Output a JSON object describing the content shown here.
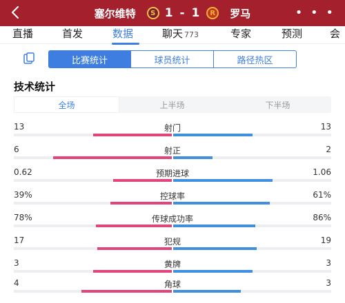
{
  "header": {
    "home_team": "塞尔维特",
    "home_crest": "S",
    "score": "1 - 1",
    "away_team": "罗马",
    "away_crest": "R",
    "more": "• • •"
  },
  "tabs": [
    {
      "label": "直播"
    },
    {
      "label": "首发"
    },
    {
      "label": "数据"
    },
    {
      "label": "聊天",
      "count": "773"
    },
    {
      "label": "专家"
    },
    {
      "label": "预测"
    },
    {
      "label": "会"
    }
  ],
  "active_tab": "数据",
  "segments": [
    "比赛统计",
    "球员统计",
    "路径热区"
  ],
  "section_title": "技术统计",
  "periods": [
    "全场",
    "上半场",
    "下半场"
  ],
  "stats": [
    {
      "label": "射门",
      "home": "13",
      "away": "13",
      "home_share": 0.5,
      "away_share": 0.5
    },
    {
      "label": "射正",
      "home": "6",
      "away": "2",
      "home_share": 0.75,
      "away_share": 0.25
    },
    {
      "label": "预期进球",
      "home": "0.62",
      "away": "1.06",
      "home_share": 0.37,
      "away_share": 0.63
    },
    {
      "label": "控球率",
      "home": "39%",
      "away": "61%",
      "home_share": 0.39,
      "away_share": 0.61
    },
    {
      "label": "传球成功率",
      "home": "78%",
      "away": "86%",
      "home_share": 0.48,
      "away_share": 0.52
    },
    {
      "label": "犯规",
      "home": "17",
      "away": "19",
      "home_share": 0.47,
      "away_share": 0.53
    },
    {
      "label": "黄牌",
      "home": "3",
      "away": "3",
      "home_share": 0.5,
      "away_share": 0.5
    },
    {
      "label": "角球",
      "home": "4",
      "away": "3",
      "home_share": 0.57,
      "away_share": 0.43
    }
  ],
  "colors": {
    "header_bg": "#a3202c",
    "accent": "#3e7ee0",
    "home_bar": "#e0457b",
    "away_bar": "#3e8fe0"
  }
}
